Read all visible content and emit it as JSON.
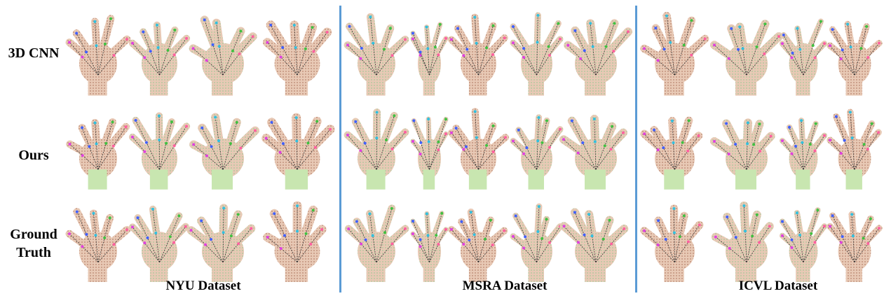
{
  "rows": [
    {
      "label": "3D CNN"
    },
    {
      "label": "Ours"
    },
    {
      "label": "Ground Truth"
    }
  ],
  "datasets": [
    {
      "caption": "NYU Dataset"
    },
    {
      "caption": "MSRA Dataset"
    },
    {
      "caption": "ICVL Dataset"
    }
  ],
  "colors": {
    "divider": "#5b9bd5",
    "hand_fill": "#e8c9b5",
    "green_patch": "#c8e6b0",
    "skeleton": "#333333",
    "joint_colors": [
      "#e040e0",
      "#4060ff",
      "#30c0e0",
      "#40c040",
      "#ff60a0"
    ]
  }
}
